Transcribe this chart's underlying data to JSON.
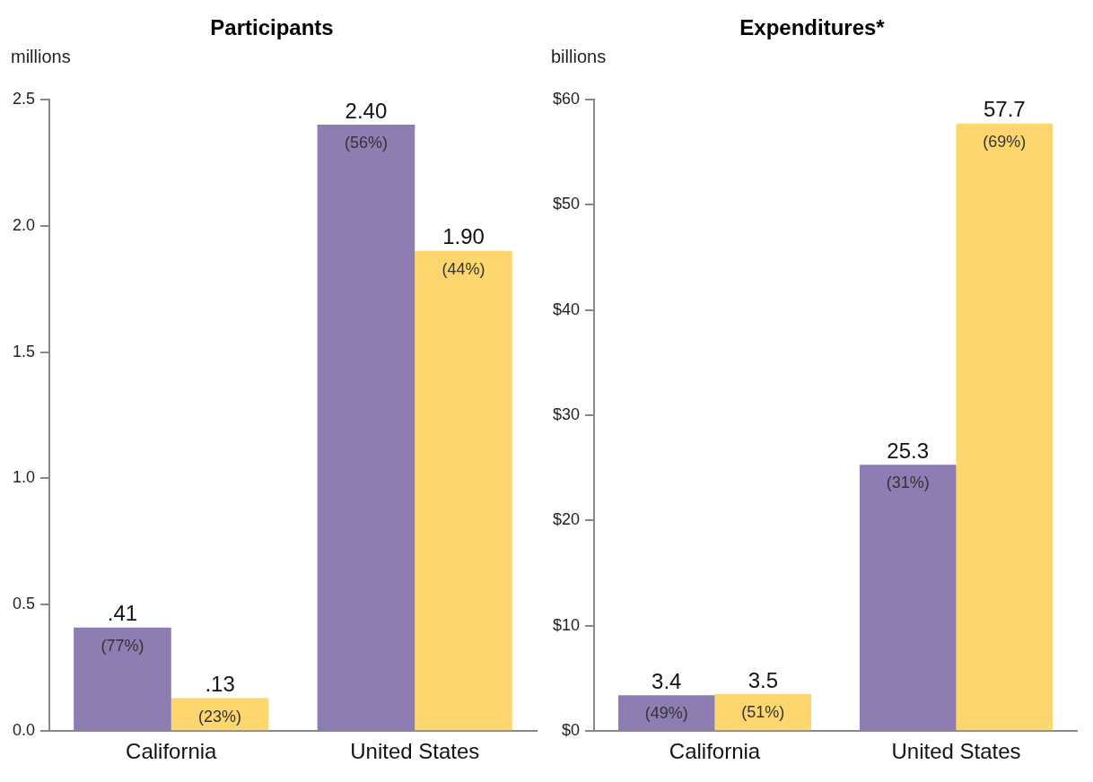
{
  "chart_data": [
    {
      "type": "bar",
      "title": "Participants",
      "ylabel": "millions",
      "categories": [
        "California",
        "United States"
      ],
      "ylim": [
        0,
        2.5
      ],
      "yticks": [
        {
          "value": 0,
          "label": "0.0"
        },
        {
          "value": 0.5,
          "label": "0.5"
        },
        {
          "value": 1,
          "label": "1.0"
        },
        {
          "value": 1.5,
          "label": "1.5"
        },
        {
          "value": 2,
          "label": "2.0"
        },
        {
          "value": 2.5,
          "label": "2.5"
        }
      ],
      "grid": false,
      "legend": false,
      "series": [
        {
          "color": "#8e7db2",
          "values": [
            0.41,
            2.4
          ],
          "value_labels": [
            ".41\n(77%)",
            "2.40\n(56%)"
          ]
        },
        {
          "color": "#fdd76e",
          "values": [
            0.13,
            1.9
          ],
          "value_labels": [
            ".13\n(23%)",
            "1.90\n(44%)"
          ]
        }
      ]
    },
    {
      "type": "bar",
      "title": "Expenditures*",
      "ylabel": "billions",
      "categories": [
        "California",
        "United States"
      ],
      "ylim": [
        0,
        60
      ],
      "yticks": [
        {
          "value": 0,
          "label": "$0"
        },
        {
          "value": 10,
          "label": "$10"
        },
        {
          "value": 20,
          "label": "$20"
        },
        {
          "value": 30,
          "label": "$30"
        },
        {
          "value": 40,
          "label": "$40"
        },
        {
          "value": 50,
          "label": "$50"
        },
        {
          "value": 60,
          "label": "$60"
        }
      ],
      "grid": false,
      "legend": false,
      "series": [
        {
          "color": "#8e7db2",
          "values": [
            3.4,
            25.3
          ],
          "value_labels": [
            "3.4\n(49%)",
            "25.3\n(31%)"
          ]
        },
        {
          "color": "#fdd76e",
          "values": [
            3.5,
            57.7
          ],
          "value_labels": [
            "3.5\n(51%)",
            "57.7\n(69%)"
          ]
        }
      ]
    }
  ]
}
